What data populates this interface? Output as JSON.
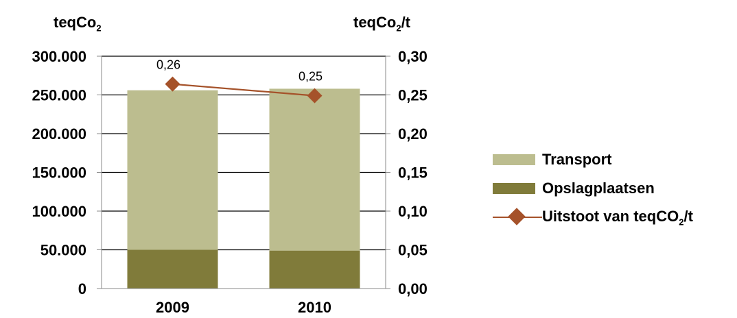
{
  "chart_data": {
    "type": "bar",
    "stacked": true,
    "categories": [
      "2009",
      "2010"
    ],
    "series": [
      {
        "name": "Opslagplaatsen",
        "kind": "bar",
        "axis": "left",
        "color": "#807b3a",
        "values": [
          50000,
          49000
        ]
      },
      {
        "name": "Transport",
        "kind": "bar",
        "axis": "left",
        "color": "#bcbd8f",
        "values": [
          206000,
          209000
        ]
      },
      {
        "name": "Uitstoot van teqCO2/t",
        "kind": "line",
        "axis": "right",
        "color": "#a5522a",
        "marker": "diamond",
        "values": [
          0.264,
          0.249
        ],
        "labels": [
          "0,26",
          "0,25"
        ]
      }
    ],
    "y_left": {
      "unit_base": "teqCo",
      "unit_sub": "2",
      "unit_suffix": "",
      "ylim": [
        0,
        300000
      ],
      "ticks": [
        "0",
        "50.000",
        "100.000",
        "150.000",
        "200.000",
        "250.000",
        "300.000"
      ]
    },
    "y_right": {
      "unit_base": "teqCo",
      "unit_sub": "2",
      "unit_suffix": "/t",
      "ylim": [
        0,
        0.3
      ],
      "ticks": [
        "0,00",
        "0,05",
        "0,10",
        "0,15",
        "0,20",
        "0,25",
        "0,30"
      ]
    },
    "grid": "horizontal",
    "legend": {
      "position": "right",
      "items": [
        {
          "label": "Transport",
          "color": "#bcbd8f",
          "kind": "bar"
        },
        {
          "label": "Opslagplaatsen",
          "color": "#807b3a",
          "kind": "bar"
        },
        {
          "label_base": "Uitstoot van teqCO",
          "label_sub": "2",
          "label_suffix": "/t",
          "color": "#a5522a",
          "kind": "line-diamond"
        }
      ]
    }
  }
}
